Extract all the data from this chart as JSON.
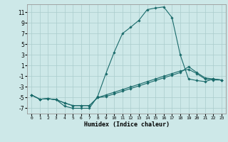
{
  "title": "",
  "xlabel": "Humidex (Indice chaleur)",
  "background_color": "#cde8e8",
  "grid_color": "#aacccc",
  "line_color": "#1a6b6b",
  "xlim": [
    -0.5,
    23.5
  ],
  "ylim": [
    -8,
    12.5
  ],
  "xticks": [
    0,
    1,
    2,
    3,
    4,
    5,
    6,
    7,
    8,
    9,
    10,
    11,
    12,
    13,
    14,
    15,
    16,
    17,
    18,
    19,
    20,
    21,
    22,
    23
  ],
  "yticks": [
    -7,
    -5,
    -3,
    -1,
    1,
    3,
    5,
    7,
    9,
    11
  ],
  "curve1_x": [
    0,
    1,
    2,
    3,
    4,
    5,
    6,
    7,
    8,
    9,
    10,
    11,
    12,
    13,
    14,
    15,
    16,
    17,
    18,
    19,
    20,
    21,
    22,
    23
  ],
  "curve1_y": [
    -4.5,
    -5.3,
    -5.2,
    -5.4,
    -6.6,
    -7.0,
    -7.0,
    -7.0,
    -4.8,
    -0.5,
    3.5,
    7.0,
    8.2,
    9.5,
    11.5,
    11.8,
    12.0,
    10.0,
    3.0,
    -1.5,
    -1.8,
    -2.0,
    -1.5,
    -1.7
  ],
  "curve2_x": [
    0,
    1,
    2,
    3,
    4,
    5,
    6,
    7,
    8,
    9,
    10,
    11,
    12,
    13,
    14,
    15,
    16,
    17,
    18,
    19,
    20,
    21,
    22,
    23
  ],
  "curve2_y": [
    -4.5,
    -5.3,
    -5.2,
    -5.4,
    -6.0,
    -6.5,
    -6.5,
    -6.5,
    -5.0,
    -4.8,
    -4.3,
    -3.8,
    -3.3,
    -2.8,
    -2.3,
    -1.8,
    -1.3,
    -0.8,
    -0.3,
    0.8,
    -0.3,
    -1.3,
    -1.5,
    -1.7
  ],
  "curve3_x": [
    0,
    1,
    2,
    3,
    4,
    5,
    6,
    7,
    8,
    9,
    10,
    11,
    12,
    13,
    14,
    15,
    16,
    17,
    18,
    19,
    20,
    21,
    22,
    23
  ],
  "curve3_y": [
    -4.5,
    -5.3,
    -5.2,
    -5.4,
    -6.0,
    -6.5,
    -6.5,
    -6.5,
    -5.0,
    -4.5,
    -4.0,
    -3.5,
    -3.0,
    -2.5,
    -2.0,
    -1.5,
    -1.0,
    -0.5,
    0.0,
    0.3,
    -0.5,
    -1.5,
    -1.7,
    -1.7
  ]
}
